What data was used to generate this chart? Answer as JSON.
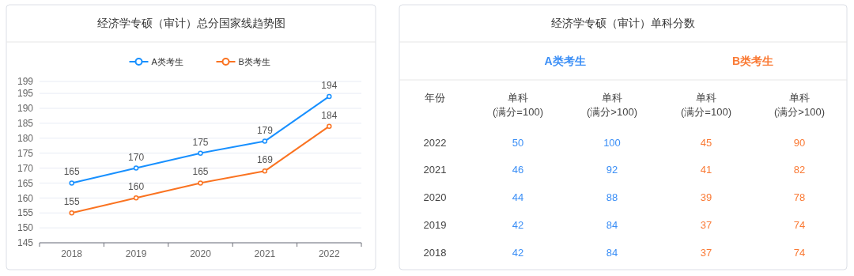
{
  "chart_data": [
    {
      "type": "line",
      "title": "经济学专硕（审计）总分国家线趋势图",
      "categories": [
        "2018",
        "2019",
        "2020",
        "2021",
        "2022"
      ],
      "series": [
        {
          "name": "A类考生",
          "color": "#1890ff",
          "values": [
            165,
            170,
            175,
            179,
            194
          ]
        },
        {
          "name": "B类考生",
          "color": "#fa7321",
          "values": [
            155,
            160,
            165,
            169,
            184
          ]
        }
      ],
      "ylim": [
        145,
        199
      ],
      "yticks": [
        145,
        150,
        155,
        160,
        165,
        170,
        175,
        180,
        185,
        190,
        195,
        199
      ],
      "grid": "y",
      "legend": "top",
      "marker": "circle",
      "line_style": "solid",
      "data_labels": true
    },
    {
      "type": "heatmap",
      "title": "经济学专硕（审计）单科分数",
      "ylabel": "年份",
      "categories": [
        "单科(满分=100)",
        "单科(满分>100)",
        "单科(满分=100)",
        "单科(满分>100)"
      ],
      "y_categories": [
        "2022",
        "2021",
        "2020",
        "2019",
        "2018"
      ],
      "cells": [
        [
          50,
          100,
          45,
          90
        ],
        [
          46,
          92,
          41,
          82
        ],
        [
          44,
          88,
          39,
          78
        ],
        [
          42,
          84,
          37,
          74
        ],
        [
          42,
          84,
          37,
          74
        ]
      ],
      "colors": [
        "#3a8ef6",
        "#3a8ef6",
        "#fa7a35",
        "#fa7a35"
      ],
      "annotations": [
        "A类考生",
        "B类考生"
      ],
      "data_labels": true
    }
  ]
}
